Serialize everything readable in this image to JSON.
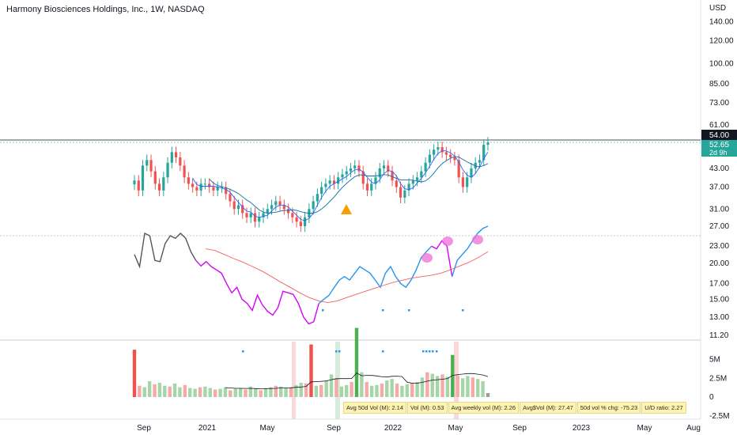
{
  "header": {
    "title": "Harmony Biosciences Holdings, Inc., 1W, NASDAQ"
  },
  "price_axis": {
    "currency": "USD",
    "ticks": [
      "140.00",
      "120.00",
      "100.00",
      "85.00",
      "73.00",
      "61.00",
      "43.00",
      "37.00",
      "31.00",
      "27.00",
      "23.00",
      "20.00",
      "17.00",
      "15.00",
      "13.00",
      "11.20"
    ],
    "last_price_label": "52.65",
    "countdown_label": "2d 9h",
    "crosshair_label": "54.00"
  },
  "volume_axis": {
    "ticks": [
      "5M",
      "2.5M",
      "0",
      "-2.5M"
    ]
  },
  "time_axis": {
    "ticks": [
      "Sep",
      "2021",
      "May",
      "Sep",
      "2022",
      "May",
      "Sep",
      "2023",
      "May",
      "Aug"
    ]
  },
  "stats_bar": [
    {
      "label": "Avg 50d Vol (M): 2.14"
    },
    {
      "label": "Vol (M): 0.53"
    },
    {
      "label": "Avg weekly vol (M): 2.26"
    },
    {
      "label": "Avg$Vol (M): 27.47"
    },
    {
      "label": "50d vol % chg: -75.23"
    },
    {
      "label": "U/D ratio: 2.27"
    }
  ],
  "colors": {
    "up": "#26a69a",
    "down": "#ef5350",
    "up_vol": "#4caf50",
    "down_vol": "#ef5350",
    "rs_line_blue": "#2196f3",
    "rs_line_magenta": "#d500f9",
    "rs_line_gray": "#555555",
    "rs_ma": "#f06060",
    "ma_fast": "#2962ff",
    "ma_slow": "#0b6fa3",
    "last_price_tag": "#26a69a",
    "crosshair_tag": "#131722",
    "marker": "#f5a000",
    "highlight": "#f06dd8"
  },
  "chart_data": {
    "type": "candlestick",
    "interval": "1W",
    "y_scale": "log",
    "ylim": [
      11.2,
      150
    ],
    "x_ticks": [
      "Sep",
      "2021",
      "May",
      "Sep",
      "2022",
      "May",
      "Sep",
      "2023",
      "May",
      "Aug"
    ],
    "candles_close": [
      39,
      36,
      44,
      46,
      42,
      38,
      36,
      40,
      45,
      49,
      47,
      44,
      40,
      38,
      37,
      36,
      38,
      38,
      37,
      36,
      37,
      37,
      35,
      33,
      31,
      32,
      30,
      29,
      30,
      28,
      29,
      30,
      31,
      32,
      33,
      32,
      31,
      30,
      29,
      28,
      27,
      29,
      31,
      33,
      35,
      37,
      38,
      39,
      38,
      40,
      41,
      42,
      43,
      44,
      42,
      38,
      36,
      38,
      40,
      43,
      44,
      42,
      39,
      37,
      34,
      36,
      38,
      39,
      40,
      42,
      45,
      48,
      50,
      51,
      49,
      48,
      47,
      46,
      40,
      37,
      40,
      43,
      45,
      46,
      52,
      53
    ],
    "rs_line": [
      21.5,
      19.5,
      25.5,
      25,
      20.5,
      20.3,
      23.5,
      25,
      24.5,
      25.5,
      24.5,
      22,
      20.5,
      19.6,
      20.3,
      19.5,
      19,
      18.5,
      17,
      15.8,
      16.5,
      15,
      14.5,
      13.7,
      15.5,
      14.3,
      13.6,
      13.2,
      14,
      16,
      15.8,
      15.6,
      14.5,
      13,
      12.3,
      12.5,
      14.5,
      15,
      15.5,
      16.5,
      17.5,
      18,
      17.5,
      18.5,
      19.5,
      19,
      18.5,
      17.5,
      16.5,
      18.5,
      19.5,
      18,
      17,
      16.5,
      17.5,
      19,
      21,
      22,
      23,
      22.5,
      24,
      23,
      18,
      20.5,
      21.5,
      22.5,
      24,
      25.5,
      26.5,
      27
    ],
    "rs_ma": [
      22.5,
      22.2,
      21.5,
      20.8,
      20.2,
      19.5,
      18.8,
      18,
      17.2,
      16.5,
      15.8,
      15.2,
      14.8,
      14.6,
      14.8,
      15.2,
      15.6,
      16,
      16.4,
      16.8,
      17.2,
      17.5,
      17.8,
      18,
      18.2,
      18.5,
      19,
      19.6,
      20.2,
      21,
      22
    ],
    "volume_axis_ticks": [
      "5M",
      "2.5M",
      "0",
      "-2.5M"
    ],
    "volume_m": [
      6.3,
      1.5,
      1.3,
      2.1,
      1.7,
      1.9,
      1.5,
      1.4,
      1.8,
      1.3,
      1.6,
      1.2,
      1.1,
      1.3,
      1.4,
      1.2,
      1.0,
      1.1,
      1.3,
      0.9,
      1.1,
      1.2,
      1.0,
      1.4,
      1.1,
      0.9,
      1.2,
      1.3,
      1.5,
      1.4,
      1.2,
      1.3,
      1.6,
      1.9,
      1.8,
      7.0,
      1.5,
      1.6,
      2.2,
      3.0,
      2.5,
      1.4,
      1.6,
      2.0,
      9.2,
      3.3,
      2.0,
      1.5,
      1.6,
      1.8,
      2.2,
      2.4,
      1.8,
      1.5,
      1.7,
      1.9,
      2.0,
      2.6,
      3.3,
      3.1,
      2.8,
      3.0,
      2.7,
      5.6,
      2.9,
      2.5,
      2.8,
      2.6,
      2.4,
      2.1,
      0.53
    ],
    "stats": {
      "avg_50d_vol_m": 2.14,
      "vol_m": 0.53,
      "avg_weekly_vol_m": 2.26,
      "avg_dollar_vol_m": 27.47,
      "vol_pct_chg_50d": -75.23,
      "ud_ratio": 2.27
    }
  }
}
